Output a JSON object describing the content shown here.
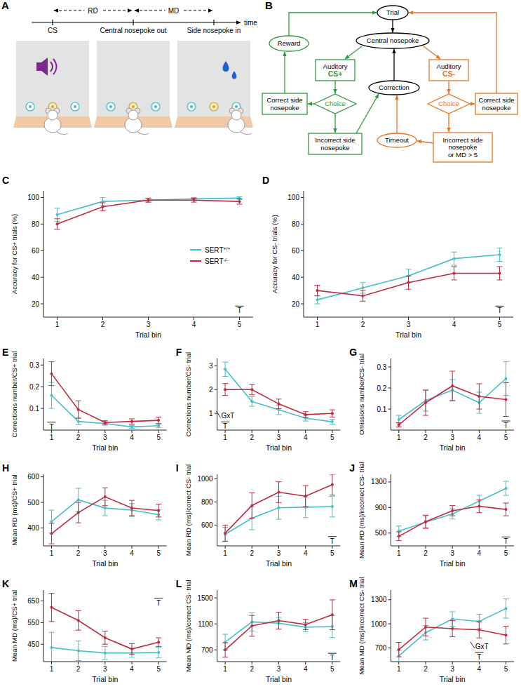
{
  "diagram_a": {
    "letter": "A",
    "events": [
      "CS",
      "Central nosepoke out",
      "Side nosepoke in"
    ],
    "intervals": [
      "RD",
      "MD"
    ],
    "time_label": "time"
  },
  "diagram_b": {
    "letter": "B",
    "nodes": [
      {
        "lines": [
          "Trial"
        ],
        "shape": "ellipse",
        "color": "#000000"
      },
      {
        "lines": [
          "Central nosepoke"
        ],
        "shape": "ellipse",
        "color": "#000000"
      },
      {
        "lines": [
          "Reward"
        ],
        "shape": "ellipse",
        "color": "#2e9a3c"
      },
      {
        "lines": [
          "Auditory",
          "CS+"
        ],
        "shape": "box",
        "color": "#2e9a3c"
      },
      {
        "lines": [
          "Auditory",
          "CS-"
        ],
        "shape": "box",
        "color": "#e8731f"
      },
      {
        "lines": [
          "Choice"
        ],
        "shape": "diamond",
        "color": "#2e9a3c"
      },
      {
        "lines": [
          "Choice"
        ],
        "shape": "diamond",
        "color": "#e8731f"
      },
      {
        "lines": [
          "Correction"
        ],
        "shape": "ellipse",
        "color": "#000000"
      },
      {
        "lines": [
          "Correct side",
          "nosepoke"
        ],
        "shape": "box",
        "color": "#2e9a3c"
      },
      {
        "lines": [
          "Correct side",
          "nosepoke"
        ],
        "shape": "box",
        "color": "#e8731f"
      },
      {
        "lines": [
          "Incorrect side",
          "nosepoke"
        ],
        "shape": "box",
        "color": "#2e9a3c"
      },
      {
        "lines": [
          "Timeout"
        ],
        "shape": "ellipse",
        "color": "#e8731f"
      },
      {
        "lines": [
          "Incorrect side",
          "nosepoke",
          "or MD > 5"
        ],
        "shape": "box",
        "color": "#e8731f"
      }
    ]
  },
  "chart_data": [
    {
      "type": "line",
      "panel": "C",
      "ylabel": "Accuracy for CS+ trials (%)",
      "xlabel": "Trial bin",
      "x": [
        1,
        2,
        3,
        4,
        5
      ],
      "xlim": [
        0.7,
        5.3
      ],
      "xticks": [
        1,
        2,
        3,
        4,
        5
      ],
      "ylim": [
        10,
        105
      ],
      "yticks": [
        20,
        40,
        60,
        80,
        100
      ],
      "legend": "right",
      "series": [
        {
          "name": "SERT+/+",
          "color": "#45bfc9",
          "values": [
            87,
            97,
            98,
            99,
            99.5
          ],
          "errors": [
            5,
            3,
            1.5,
            1,
            1
          ]
        },
        {
          "name": "SERT-/-",
          "color": "#c1283e",
          "values": [
            80,
            93,
            98,
            98,
            97
          ],
          "errors": [
            4,
            3,
            1.5,
            1.5,
            2
          ]
        }
      ],
      "annotations": [
        {
          "text": "T",
          "x": 5,
          "y": 13
        }
      ]
    },
    {
      "type": "line",
      "panel": "D",
      "ylabel": "Accuracy for CS- trials (%)",
      "xlabel": "Trial bin",
      "x": [
        1,
        2,
        3,
        4,
        5
      ],
      "xlim": [
        0.7,
        5.3
      ],
      "xticks": [
        1,
        2,
        3,
        4,
        5
      ],
      "ylim": [
        10,
        105
      ],
      "yticks": [
        20,
        40,
        60,
        80,
        100
      ],
      "series": [
        {
          "color": "#45bfc9",
          "values": [
            23,
            32,
            41,
            54,
            57
          ],
          "errors": [
            3,
            4,
            5,
            5,
            5
          ]
        },
        {
          "color": "#c1283e",
          "values": [
            30,
            26,
            36,
            43,
            43
          ],
          "errors": [
            4,
            4,
            5,
            5,
            5
          ]
        }
      ],
      "annotations": [
        {
          "text": "T",
          "x": 5,
          "y": 13
        }
      ]
    },
    {
      "type": "line",
      "panel": "E",
      "ylabel": "Corrections number/CS+ trial",
      "xlabel": "Trial bin",
      "x": [
        1,
        2,
        3,
        4,
        5
      ],
      "xlim": [
        0.7,
        5.3
      ],
      "xticks": [
        1,
        2,
        3,
        4,
        5
      ],
      "ylim": [
        0,
        0.33
      ],
      "yticks": [
        0.1,
        0.2,
        0.3
      ],
      "series": [
        {
          "color": "#45bfc9",
          "values": [
            0.16,
            0.04,
            0.03,
            0.015,
            0.02
          ],
          "errors": [
            0.06,
            0.015,
            0.008,
            0.007,
            0.008
          ]
        },
        {
          "color": "#c1283e",
          "values": [
            0.26,
            0.095,
            0.035,
            0.04,
            0.045
          ],
          "errors": [
            0.055,
            0.04,
            0.008,
            0.012,
            0.015
          ]
        }
      ],
      "annotations": [
        {
          "text": "T",
          "x": 1,
          "y": 0.004
        }
      ]
    },
    {
      "type": "line",
      "panel": "F",
      "ylabel": "Corrections number/CS- trial",
      "xlabel": "Trial bin",
      "x": [
        1,
        2,
        3,
        4,
        5
      ],
      "xlim": [
        0.7,
        5.3
      ],
      "xticks": [
        1,
        2,
        3,
        4,
        5
      ],
      "ylim": [
        0.3,
        3.3
      ],
      "yticks": [
        1,
        2,
        3
      ],
      "series": [
        {
          "color": "#45bfc9",
          "values": [
            2.85,
            1.5,
            1.15,
            0.8,
            0.65
          ],
          "errors": [
            0.3,
            0.2,
            0.2,
            0.12,
            0.1
          ]
        },
        {
          "color": "#c1283e",
          "values": [
            2.0,
            2.0,
            1.4,
            0.95,
            1.0
          ],
          "errors": [
            0.25,
            0.22,
            0.2,
            0.12,
            0.15
          ]
        }
      ],
      "annotations": [
        {
          "text": "GxT",
          "x": 1.1,
          "y": 0.8
        },
        {
          "text": "T",
          "x": 1,
          "y": 0.35
        }
      ]
    },
    {
      "type": "line",
      "panel": "G",
      "ylabel": "Omissions number/CS- trial",
      "xlabel": "Trial bin",
      "x": [
        1,
        2,
        3,
        4,
        5
      ],
      "xlim": [
        0.7,
        5.3
      ],
      "xticks": [
        1,
        2,
        3,
        4,
        5
      ],
      "ylim": [
        0,
        0.34
      ],
      "yticks": [
        0.1,
        0.2,
        0.3
      ],
      "series": [
        {
          "color": "#45bfc9",
          "values": [
            0.05,
            0.14,
            0.19,
            0.13,
            0.245
          ],
          "errors": [
            0.02,
            0.05,
            0.05,
            0.05,
            0.08
          ]
        },
        {
          "color": "#c1283e",
          "values": [
            0.025,
            0.13,
            0.21,
            0.16,
            0.145
          ],
          "errors": [
            0.01,
            0.06,
            0.07,
            0.06,
            0.08
          ]
        }
      ],
      "annotations": [
        {
          "text": "T",
          "x": 5,
          "y": 0.01
        }
      ]
    },
    {
      "type": "line",
      "panel": "H",
      "ylabel": "Mean RD (ms)/CS+ trial",
      "xlabel": "Trial bin",
      "x": [
        1,
        2,
        3,
        4,
        5
      ],
      "xlim": [
        0.7,
        5.3
      ],
      "xticks": [
        1,
        2,
        3,
        4,
        5
      ],
      "ylim": [
        330,
        610
      ],
      "yticks": [
        400,
        500,
        600
      ],
      "series": [
        {
          "color": "#45bfc9",
          "values": [
            425,
            510,
            478,
            470,
            452
          ],
          "errors": [
            45,
            45,
            30,
            25,
            20
          ]
        },
        {
          "color": "#c1283e",
          "values": [
            378,
            460,
            522,
            478,
            468
          ],
          "errors": [
            40,
            40,
            35,
            30,
            25
          ]
        }
      ]
    },
    {
      "type": "line",
      "panel": "I",
      "ylabel": "Mean RD (ms)/correct CS- trial",
      "xlabel": "Trial bin",
      "x": [
        1,
        2,
        3,
        4,
        5
      ],
      "xlim": [
        0.7,
        5.3
      ],
      "xticks": [
        1,
        2,
        3,
        4,
        5
      ],
      "ylim": [
        420,
        1040
      ],
      "yticks": [
        600,
        800,
        1000
      ],
      "series": [
        {
          "color": "#45bfc9",
          "values": [
            520,
            660,
            750,
            755,
            760
          ],
          "errors": [
            60,
            100,
            100,
            90,
            90
          ]
        },
        {
          "color": "#c1283e",
          "values": [
            530,
            770,
            885,
            850,
            950
          ],
          "errors": [
            70,
            110,
            90,
            90,
            90
          ]
        }
      ],
      "annotations": [
        {
          "text": "T",
          "x": 5,
          "y": 440
        }
      ]
    },
    {
      "type": "line",
      "panel": "J",
      "ylabel": "Mean RD (ms)/incorrect CS- trial",
      "xlabel": "Trial bin",
      "x": [
        1,
        2,
        3,
        4,
        5
      ],
      "xlim": [
        0.7,
        5.3
      ],
      "xticks": [
        1,
        2,
        3,
        4,
        5
      ],
      "ylim": [
        300,
        1420
      ],
      "yticks": [
        500,
        900,
        1300
      ],
      "series": [
        {
          "color": "#45bfc9",
          "values": [
            530,
            670,
            800,
            1000,
            1200
          ],
          "errors": [
            80,
            100,
            80,
            90,
            110
          ]
        },
        {
          "color": "#c1283e",
          "values": [
            450,
            680,
            850,
            920,
            870
          ],
          "errors": [
            70,
            100,
            80,
            100,
            100
          ]
        }
      ],
      "annotations": [
        {
          "text": "T",
          "x": 5,
          "y": 330
        }
      ]
    },
    {
      "type": "line",
      "panel": "K",
      "ylabel": "Mean MD (ms)/CS+ trial",
      "xlabel": "Trial bin",
      "x": [
        1,
        2,
        3,
        4,
        5
      ],
      "xlim": [
        0.7,
        5.3
      ],
      "xticks": [
        1,
        2,
        3,
        4,
        5
      ],
      "ylim": [
        370,
        700
      ],
      "yticks": [
        450,
        550,
        650
      ],
      "series": [
        {
          "color": "#45bfc9",
          "values": [
            435,
            420,
            410,
            410,
            412
          ],
          "errors": [
            70,
            45,
            30,
            20,
            25
          ]
        },
        {
          "color": "#c1283e",
          "values": [
            620,
            560,
            480,
            428,
            460
          ],
          "errors": [
            65,
            45,
            30,
            25,
            20
          ]
        }
      ],
      "annotations": [
        {
          "text": "T",
          "x": 5,
          "y": 630
        }
      ]
    },
    {
      "type": "line",
      "panel": "L",
      "ylabel": "Mean MD (ms)/correct CS- trial",
      "xlabel": "Trial bin",
      "x": [
        1,
        2,
        3,
        4,
        5
      ],
      "xlim": [
        0.7,
        5.3
      ],
      "xticks": [
        1,
        2,
        3,
        4,
        5
      ],
      "ylim": [
        520,
        1620
      ],
      "yticks": [
        700,
        1100,
        1500
      ],
      "series": [
        {
          "color": "#45bfc9",
          "values": [
            820,
            1130,
            1110,
            1050,
            1060
          ],
          "errors": [
            120,
            140,
            90,
            70,
            170
          ]
        },
        {
          "color": "#c1283e",
          "values": [
            700,
            1070,
            1150,
            1090,
            1240
          ],
          "errors": [
            110,
            160,
            130,
            80,
            230
          ]
        }
      ],
      "annotations": [
        {
          "text": "T",
          "x": 5,
          "y": 540
        }
      ]
    },
    {
      "type": "line",
      "panel": "M",
      "ylabel": "Mean MD (ms)/incorrect CS- trial",
      "xlabel": "Trial bin",
      "x": [
        1,
        2,
        3,
        4,
        5
      ],
      "xlim": [
        0.7,
        5.3
      ],
      "xticks": [
        1,
        2,
        3,
        4,
        5
      ],
      "ylim": [
        530,
        1420
      ],
      "yticks": [
        700,
        1000,
        1300
      ],
      "series": [
        {
          "color": "#45bfc9",
          "values": [
            600,
            890,
            1060,
            1030,
            1190
          ],
          "errors": [
            70,
            90,
            90,
            90,
            120
          ]
        },
        {
          "color": "#c1283e",
          "values": [
            680,
            960,
            940,
            925,
            860
          ],
          "errors": [
            90,
            110,
            100,
            100,
            110
          ]
        }
      ],
      "annotations": [
        {
          "text": "GxT",
          "x": 4.1,
          "y": 690
        },
        {
          "text": "T",
          "x": 4,
          "y": 560
        }
      ]
    }
  ]
}
